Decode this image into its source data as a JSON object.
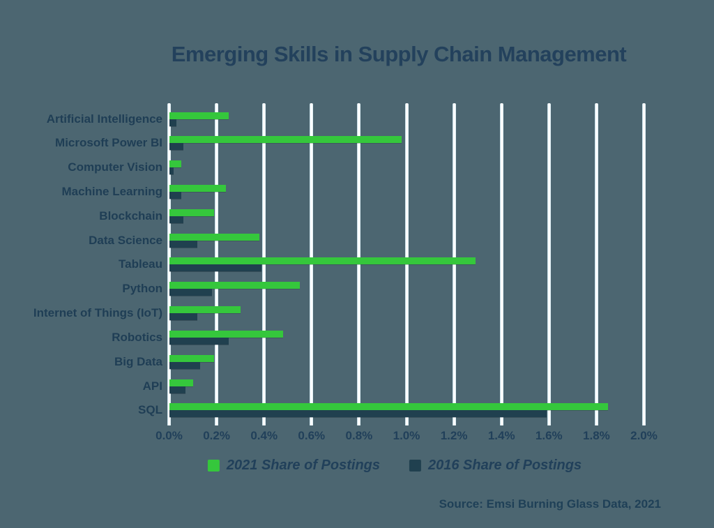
{
  "title": "Emerging Skills in Supply Chain Management",
  "source": "Source: Emsi Burning Glass Data, 2021",
  "colors": {
    "background": "#4c6671",
    "series_2021_green": "#35c73c",
    "series_2016_navy": "#20404f",
    "text_navy": "#21405a",
    "gridline_white": "#ffffff"
  },
  "legend": [
    {
      "label": "2021 Share of Postings",
      "color": "#35c73c"
    },
    {
      "label": "2016 Share of Postings",
      "color": "#20404f"
    }
  ],
  "chart_data": {
    "type": "bar",
    "orientation": "horizontal",
    "title": "Emerging Skills in Supply Chain Management",
    "categories": [
      "Artificial Intelligence",
      "Microsoft Power BI",
      "Computer Vision",
      "Machine Learning",
      "Blockchain",
      "Data Science",
      "Tableau",
      "Python",
      "Internet of Things (IoT)",
      "Robotics",
      "Big Data",
      "API",
      "SQL"
    ],
    "series": [
      {
        "name": "2021 Share of Postings",
        "color": "#35c73c",
        "values": [
          0.25,
          0.98,
          0.05,
          0.24,
          0.19,
          0.38,
          1.29,
          0.55,
          0.3,
          0.48,
          0.19,
          0.1,
          1.85
        ]
      },
      {
        "name": "2016 Share of Postings",
        "color": "#20404f",
        "values": [
          0.03,
          0.06,
          0.02,
          0.05,
          0.06,
          0.12,
          0.39,
          0.18,
          0.12,
          0.25,
          0.13,
          0.07,
          1.59
        ]
      }
    ],
    "x_ticks": [
      "0.0%",
      "0.2%",
      "0.4%",
      "0.6%",
      "0.8%",
      "1.0%",
      "1.2%",
      "1.4%",
      "1.6%",
      "1.8%",
      "2.0%"
    ],
    "xlabel": "",
    "ylabel": "",
    "xlim": [
      0,
      2.0
    ],
    "grid": "vertical white gridlines",
    "legend_position": "bottom",
    "value_unit": "percent of postings"
  }
}
